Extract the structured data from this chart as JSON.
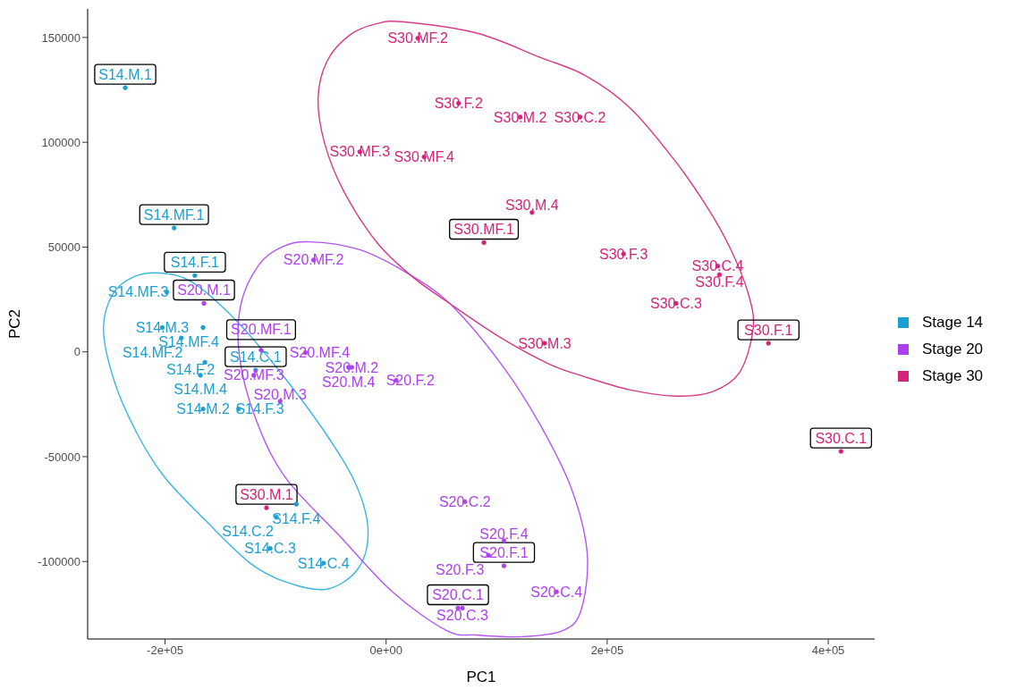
{
  "chart_data": {
    "type": "scatter",
    "xlabel": "PC1",
    "ylabel": "PC2",
    "xlim": [
      -270000,
      442000
    ],
    "ylim": [
      -137000,
      163600
    ],
    "xticks": [
      {
        "value": -200000,
        "label": "-2e+05"
      },
      {
        "value": 0,
        "label": "0e+00"
      },
      {
        "value": 200000,
        "label": "2e+05"
      },
      {
        "value": 400000,
        "label": "4e+05"
      }
    ],
    "yticks": [
      -100000,
      -50000,
      0,
      50000,
      100000,
      150000
    ],
    "grid": false,
    "legend": "right",
    "series": [
      {
        "color": "#1a9fd2",
        "x": [
          -236000,
          -191800,
          -173000,
          -118000
        ],
        "values": [
          126000,
          59100,
          36400,
          -8700
        ],
        "value_labels": [
          "S14.M.1",
          "S14.MF.1",
          "S14.F.1",
          "S14.C.1"
        ]
      },
      {
        "color": "#ad3ff0",
        "x": [
          -164800,
          -113100,
          106600,
          65000
        ],
        "values": [
          23100,
          800,
          -102100,
          -122300
        ],
        "value_labels": [
          "S20.M.1",
          "S20.MF.1",
          "S20.F.1",
          "S20.C.1"
        ]
      },
      {
        "color": "#d4237a",
        "x": [
          88500,
          345900,
          411500,
          -108200
        ],
        "values": [
          52100,
          4100,
          -47500,
          -74400
        ],
        "value_labels": [
          "S30.MF.1",
          "S30.F.1",
          "S30.C.1",
          "S30.M.1"
        ]
      },
      {
        "name": "Stage 14",
        "color": "#1a9fd2",
        "x": [
          -198400,
          -202500,
          -165600,
          -185300,
          -163900,
          -168000,
          -165600,
          -133600,
          -81200,
          -99200,
          -104900,
          -56600
        ],
        "values": [
          28500,
          11600,
          11600,
          6600,
          -5000,
          -11200,
          -27300,
          -27300,
          -72700,
          -78900,
          -93800,
          -100800
        ],
        "value_labels": [
          "S14.MF.3",
          "S14.M.3",
          "S14.MF.4",
          "S14.MF.2",
          "S14.F.2",
          "S14.M.4",
          "S14.M.2",
          "S14.F.3",
          "S14.F.4",
          "S14.C.2",
          "S14.C.3",
          "S14.C.4"
        ]
      },
      {
        "name": "Stage 20",
        "color": "#ad3ff0",
        "x": [
          -65600,
          -73000,
          -119700,
          -95900,
          -31000,
          -34000,
          9000,
          71300,
          106600,
          92600,
          154100,
          69000
        ],
        "values": [
          43800,
          -400,
          -11200,
          -23600,
          -7400,
          -7400,
          -13600,
          -71500,
          -90100,
          -97100,
          -114500,
          -122300
        ],
        "value_labels": [
          "S20.MF.2",
          "S20.MF.4",
          "S20.MF.3",
          "S20.M.3",
          "S20.M.2",
          "S20.M.4",
          "S20.F.2",
          "S20.C.2",
          "S20.F.4",
          "S20.F.3",
          "S20.C.4",
          "S20.C.3"
        ]
      },
      {
        "name": "Stage 30",
        "color": "#d4237a",
        "x": [
          28700,
          65600,
          121300,
          175400,
          -23800,
          34400,
          132000,
          214800,
          300000,
          301600,
          262300,
          143400
        ],
        "values": [
          149600,
          118600,
          112000,
          112000,
          95400,
          93000,
          66500,
          46700,
          40900,
          36800,
          23100,
          4100
        ],
        "value_labels": [
          "S30.MF.2",
          "S30.F.2",
          "S30.M.2",
          "S30.C.2",
          "S30.MF.3",
          "S30.MF.4",
          "S30.M.4",
          "S30.F.3",
          "S30.C.4",
          "S30.F.4",
          "S30.C.3",
          "S30.M.3"
        ]
      }
    ]
  }
}
